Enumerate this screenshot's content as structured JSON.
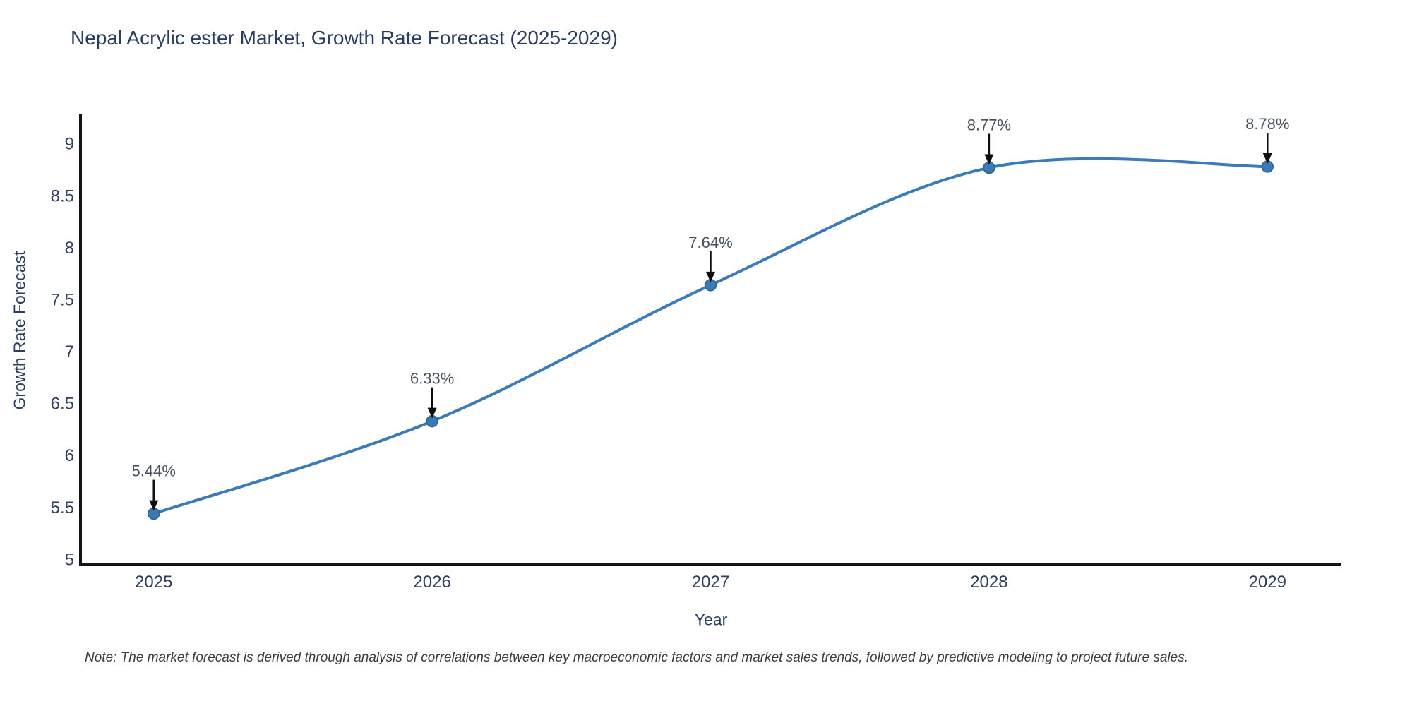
{
  "title": "Nepal Acrylic ester Market, Growth Rate Forecast (2025-2029)",
  "note": "Note: The market forecast is derived through analysis of correlations between key macroeconomic factors and market sales trends, followed by predictive modeling to project future sales.",
  "chart_data": {
    "type": "line",
    "title": "Nepal Acrylic ester Market, Growth Rate Forecast (2025-2029)",
    "xlabel": "Year",
    "ylabel": "Growth Rate Forecast",
    "x": [
      2025,
      2026,
      2027,
      2028,
      2029
    ],
    "values": [
      5.44,
      6.33,
      7.64,
      8.77,
      8.78
    ],
    "point_labels": [
      "5.44%",
      "6.33%",
      "7.64%",
      "8.77%",
      "8.78%"
    ],
    "x_ticks": [
      "2025",
      "2026",
      "2027",
      "2028",
      "2029"
    ],
    "y_ticks": [
      9,
      8.5,
      8,
      7.5,
      7,
      6.5,
      6,
      5.5,
      5
    ],
    "xlim": [
      2024.737,
      2029.263
    ],
    "ylim": [
      4.948,
      9.29
    ],
    "line_shape": "spline",
    "grid": false,
    "legend": "none",
    "colors": {
      "line": "#3a7bb8",
      "marker_fill": "#3a79b4",
      "marker_edge": "#2d6395",
      "axis_line": "#111318",
      "arrow": "#0e0e0e",
      "tick_text": "#2f3f5c",
      "annotation_text": "#47505f",
      "title_text": "#2a3f5f"
    }
  }
}
